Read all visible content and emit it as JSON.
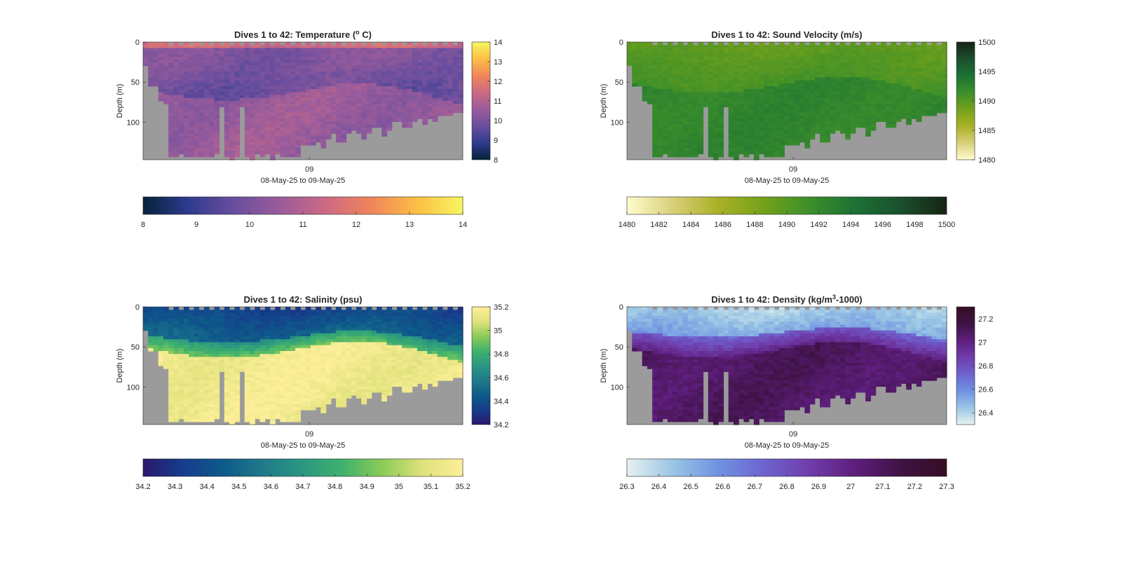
{
  "figure": {
    "nan_color": "#9b9b9b",
    "panels": [
      {
        "title_main": "Dives 1 to 42: Temperature (",
        "title_sup": "o",
        "title_tail": " C)",
        "colormap": "thermal",
        "colormap_stops": [
          "#04233a",
          "#2f3b8f",
          "#6a4e9e",
          "#9a5c9b",
          "#cc6a84",
          "#f0855a",
          "#fbbf45",
          "#f6f75f"
        ],
        "field_level_top": 0.52,
        "field_level_surface": 0.6
      },
      {
        "title_main": "Dives 1 to 42: Sound Velocity (m/s)",
        "title_sup": "",
        "title_tail": "",
        "colormap": "speed",
        "colormap_stops": [
          "#fffdcd",
          "#d9cf7a",
          "#a9b125",
          "#73a11a",
          "#3c8f2a",
          "#1c7134",
          "#1a4f2d",
          "#172313"
        ],
        "field_level_top": 0.45,
        "field_level_surface": 0.48
      },
      {
        "title_main": "Dives 1 to 42: Salinity (psu)",
        "title_sup": "",
        "title_tail": "",
        "colormap": "haline",
        "colormap_stops": [
          "#2a186c",
          "#163c8c",
          "#0e5a8a",
          "#1f7a8a",
          "#2b9782",
          "#40b26c",
          "#8ccb59",
          "#e0e27c",
          "#fdef9a"
        ],
        "field_level_top": 0.2,
        "field_level_surface": 0.15
      },
      {
        "title_main": "Dives 1 to 42: Density (kg/m",
        "title_sup": "3",
        "title_tail": "-1000)",
        "colormap": "dense",
        "colormap_stops": [
          "#e6f1f1",
          "#9ac6e4",
          "#6f93e2",
          "#6e63cf",
          "#6f3daa",
          "#5e1e7d",
          "#3e1344",
          "#360e24"
        ],
        "field_level_top": 0.15,
        "field_level_surface": 0.1
      }
    ]
  },
  "chart_data": [
    {
      "type": "heatmap",
      "title": "Dives 1 to 42: Temperature (o C)",
      "xlabel": "08-May-25 to 09-May-25",
      "ylabel": "Depth (m)",
      "x_tick_labels": [
        "09"
      ],
      "y_ticks": [
        0,
        50,
        100
      ],
      "y_tick_labels": [
        "0",
        "50",
        "100"
      ],
      "ylim": [
        0,
        147
      ],
      "y_reversed": true,
      "side_colorbar": {
        "range": [
          8,
          14
        ],
        "ticks": [
          8,
          9,
          10,
          11,
          12,
          13,
          14
        ]
      },
      "bottom_colorbar": {
        "range": [
          8,
          14
        ],
        "ticks": [
          8,
          9,
          10,
          11,
          12,
          13,
          14
        ]
      },
      "dives": 42
    },
    {
      "type": "heatmap",
      "title": "Dives 1 to 42: Sound Velocity (m/s)",
      "xlabel": "08-May-25 to 09-May-25",
      "ylabel": "Depth (m)",
      "x_tick_labels": [
        "09"
      ],
      "y_ticks": [
        0,
        50,
        100
      ],
      "y_tick_labels": [
        "0",
        "50",
        "100"
      ],
      "ylim": [
        0,
        147
      ],
      "y_reversed": true,
      "side_colorbar": {
        "range": [
          1480,
          1500
        ],
        "ticks": [
          1480,
          1485,
          1490,
          1495,
          1500
        ]
      },
      "bottom_colorbar": {
        "range": [
          1480,
          1500
        ],
        "ticks": [
          1480,
          1482,
          1484,
          1486,
          1488,
          1490,
          1492,
          1494,
          1496,
          1498,
          1500
        ]
      },
      "dives": 42
    },
    {
      "type": "heatmap",
      "title": "Dives 1 to 42: Salinity (psu)",
      "xlabel": "08-May-25 to 09-May-25",
      "ylabel": "Depth (m)",
      "x_tick_labels": [
        "09"
      ],
      "y_ticks": [
        0,
        50,
        100
      ],
      "y_tick_labels": [
        "0",
        "50",
        "100"
      ],
      "ylim": [
        0,
        147
      ],
      "y_reversed": true,
      "side_colorbar": {
        "range": [
          34.2,
          35.2
        ],
        "ticks": [
          34.2,
          34.4,
          34.6,
          34.8,
          35,
          35.2
        ],
        "tick_labels": [
          "34.2",
          "34.4",
          "34.6",
          "34.8",
          "35",
          "35.2"
        ]
      },
      "bottom_colorbar": {
        "range": [
          34.2,
          35.2
        ],
        "ticks": [
          34.2,
          34.3,
          34.4,
          34.5,
          34.6,
          34.7,
          34.8,
          34.9,
          35,
          35.1,
          35.2
        ],
        "tick_labels": [
          "34.2",
          "34.3",
          "34.4",
          "34.5",
          "34.6",
          "34.7",
          "34.8",
          "34.9",
          "35",
          "35.1",
          "35.2"
        ]
      },
      "dives": 42
    },
    {
      "type": "heatmap",
      "title": "Dives 1 to 42: Density (kg/m3-1000)",
      "xlabel": "08-May-25 to 09-May-25",
      "ylabel": "Depth (m)",
      "x_tick_labels": [
        "09"
      ],
      "y_ticks": [
        0,
        50,
        100
      ],
      "y_tick_labels": [
        "0",
        "50",
        "100"
      ],
      "ylim": [
        0,
        147
      ],
      "y_reversed": true,
      "side_colorbar": {
        "range": [
          26.3,
          27.3
        ],
        "ticks": [
          26.4,
          26.6,
          26.8,
          27,
          27.2
        ],
        "tick_labels": [
          "26.4",
          "26.6",
          "26.8",
          "27",
          "27.2"
        ]
      },
      "bottom_colorbar": {
        "range": [
          26.3,
          27.3
        ],
        "ticks": [
          26.3,
          26.4,
          26.5,
          26.6,
          26.7,
          26.8,
          26.9,
          27,
          27.1,
          27.2,
          27.3
        ],
        "tick_labels": [
          "26.3",
          "26.4",
          "26.5",
          "26.6",
          "26.7",
          "26.8",
          "26.9",
          "27",
          "27.1",
          "27.2",
          "27.3"
        ]
      },
      "dives": 42
    }
  ]
}
